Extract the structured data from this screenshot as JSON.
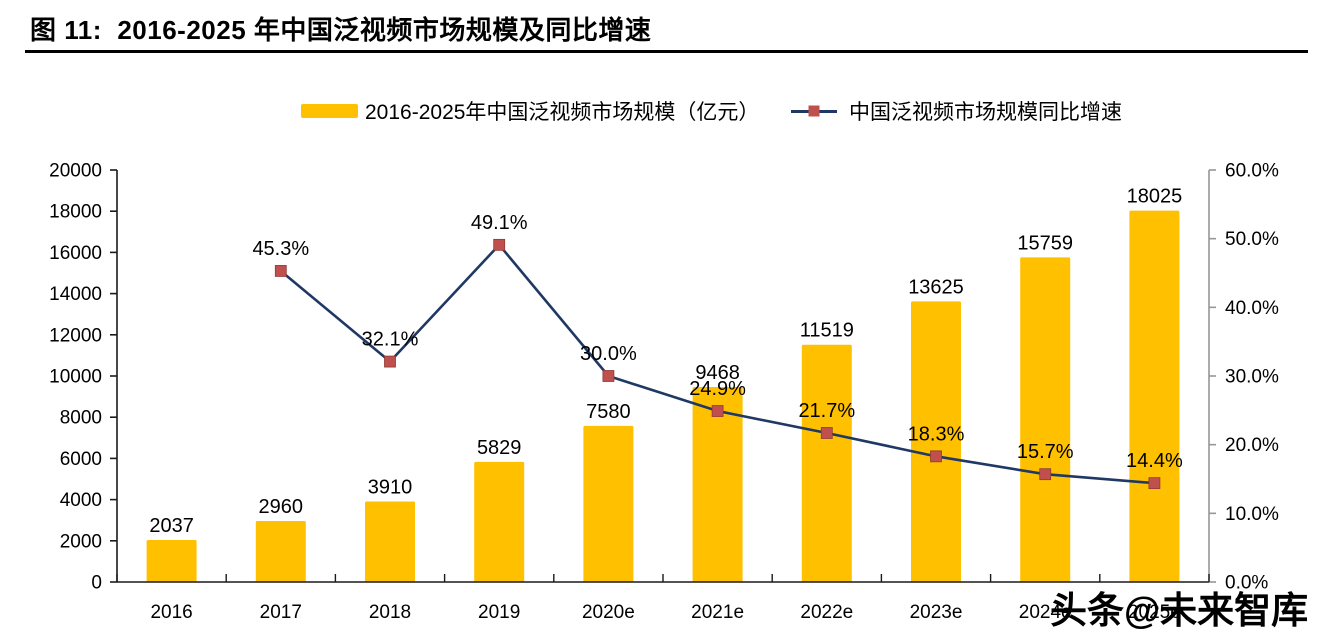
{
  "header": {
    "title": "图 11:  2016-2025 年中国泛视频市场规模及同比增速"
  },
  "watermark": "头条@未来智库",
  "chart_data": {
    "type": "combo",
    "categories": [
      "2016",
      "2017",
      "2018",
      "2019",
      "2020e",
      "2021e",
      "2022e",
      "2023e",
      "2024e",
      "2025e"
    ],
    "series": [
      {
        "name": "2016-2025年中国泛视频市场规模（亿元）",
        "type": "bar",
        "axis": "left",
        "color": "#FFC000",
        "values": [
          2037,
          2960,
          3910,
          5829,
          7580,
          9468,
          11519,
          13625,
          15759,
          18025
        ],
        "labels": [
          "2037",
          "2960",
          "3910",
          "5829",
          "7580",
          "9468",
          "11519",
          "13625",
          "15759",
          "18025"
        ]
      },
      {
        "name": "中国泛视频市场规模同比增速",
        "type": "line",
        "axis": "right",
        "color": "#1F3864",
        "marker": "square",
        "marker_color": "#C0504D",
        "marker_edge_color": "#8E3B38",
        "values": [
          null,
          45.3,
          32.1,
          49.1,
          30.0,
          24.9,
          21.7,
          18.3,
          15.7,
          14.4
        ],
        "labels": [
          "",
          "45.3%",
          "32.1%",
          "49.1%",
          "30.0%",
          "24.9%",
          "21.7%",
          "18.3%",
          "15.7%",
          "14.4%"
        ]
      }
    ],
    "left_axis": {
      "min": 0,
      "max": 20000,
      "step": 2000,
      "tick_labels": [
        "0",
        "2000",
        "4000",
        "6000",
        "8000",
        "10000",
        "12000",
        "14000",
        "16000",
        "18000",
        "20000"
      ]
    },
    "right_axis": {
      "min": 0,
      "max": 60,
      "step": 10,
      "tick_labels": [
        "0.0%",
        "10.0%",
        "20.0%",
        "30.0%",
        "40.0%",
        "50.0%",
        "60.0%"
      ]
    },
    "grid": false,
    "legend_position": "top",
    "axis_color": "#1A1A1A",
    "right_axis_color": "#969696",
    "label_color": "#000000"
  }
}
